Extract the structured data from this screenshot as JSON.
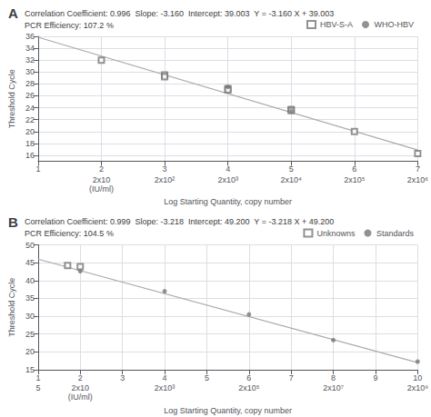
{
  "chart_data": [
    {
      "type": "scatter",
      "title": "A",
      "annotations": [
        "Correlation Coefficient: 0.996  Slope: -3.160  Intercept: 39.003  Y = -3.160 X + 39.003",
        "PCR Efficiency: 107.2 %"
      ],
      "xlabel": "Log Starting Quantity, copy number",
      "ylabel": "Threshold Cycle",
      "xlim": [
        1,
        7
      ],
      "ylim": [
        15,
        36
      ],
      "xticks": [
        1,
        2,
        3,
        4,
        5,
        6,
        7
      ],
      "yticks": [
        16,
        18,
        20,
        22,
        24,
        26,
        28,
        30,
        32,
        34,
        36
      ],
      "x2ticks": [
        {
          "value": 2,
          "label": "2x10\n(IU/ml)"
        },
        {
          "value": 3,
          "label": "2x10²"
        },
        {
          "value": 4,
          "label": "2x10³"
        },
        {
          "value": 5,
          "label": "2x10⁴"
        },
        {
          "value": 6,
          "label": "2x10⁵"
        },
        {
          "value": 7,
          "label": "2x10⁶"
        }
      ],
      "grid": true,
      "legend": "upper right",
      "series": [
        {
          "name": "HBV-S-A",
          "type": "scatter",
          "marker": "square_open",
          "color": "#777777",
          "x": [
            2,
            3,
            3,
            4,
            4,
            5,
            5,
            6,
            7
          ],
          "values": [
            32.0,
            29.5,
            29.2,
            27.2,
            27.0,
            23.7,
            23.5,
            20.0,
            16.3
          ]
        },
        {
          "name": "WHO-HBV",
          "type": "scatter",
          "marker": "circle",
          "color": "#777777",
          "x": [
            4,
            5
          ],
          "values": [
            27.5,
            23.4
          ]
        },
        {
          "type": "line",
          "color": "#aaaaaa",
          "x": [
            1,
            7
          ],
          "values": [
            35.843,
            16.883
          ]
        }
      ]
    },
    {
      "type": "scatter",
      "title": "B",
      "annotations": [
        "Correlation Coefficient: 0.999  Slope: -3.218  Intercept: 49.200  Y = -3.218 X + 49.200",
        "PCR Efficiency: 104.5 %"
      ],
      "xlabel": "Log Starting Quantity, copy number",
      "ylabel": "Threshold Cycle",
      "xlim": [
        1,
        10
      ],
      "ylim": [
        15,
        50
      ],
      "xticks": [
        1,
        2,
        3,
        4,
        5,
        6,
        7,
        8,
        9,
        10
      ],
      "yticks": [
        15,
        20,
        25,
        30,
        35,
        40,
        45,
        50
      ],
      "x2ticks": [
        {
          "value": 1.0,
          "label": "5"
        },
        {
          "value": 2.0,
          "label": "2x10\n(IU/ml)"
        },
        {
          "value": 4,
          "label": "2x10³"
        },
        {
          "value": 6,
          "label": "2x10⁵"
        },
        {
          "value": 8,
          "label": "2x10⁷"
        },
        {
          "value": 10,
          "label": "2x10⁹"
        }
      ],
      "grid": true,
      "legend": "upper right",
      "series": [
        {
          "name": "Unknowns",
          "type": "scatter",
          "marker": "square_open",
          "color": "#777777",
          "x": [
            1.7,
            2.0
          ],
          "values": [
            44.2,
            43.9
          ]
        },
        {
          "name": "Standards",
          "type": "scatter",
          "marker": "circle",
          "color": "#777777",
          "x": [
            2,
            4,
            6,
            8,
            10
          ],
          "values": [
            42.6,
            37.0,
            30.5,
            23.3,
            17.3
          ]
        },
        {
          "type": "line",
          "color": "#aaaaaa",
          "x": [
            1,
            10
          ],
          "values": [
            46.0,
            17.0
          ]
        }
      ]
    }
  ]
}
